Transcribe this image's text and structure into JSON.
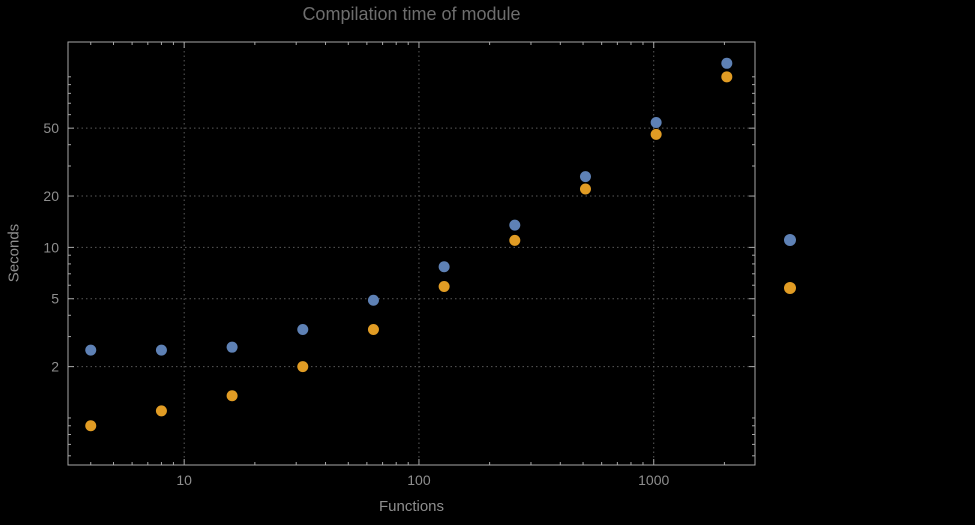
{
  "chart_data": {
    "type": "scatter",
    "title": "Compilation time of module",
    "xlabel": "Functions",
    "ylabel": "Seconds",
    "x_scale": "log",
    "y_scale": "log",
    "xlim": [
      3.2,
      2700
    ],
    "ylim": [
      0.53,
      160
    ],
    "grid": "dotted",
    "background": "#000000",
    "x_gridlines": [
      10,
      100,
      1000
    ],
    "x_tick_labels": [
      "10",
      "100",
      "1000"
    ],
    "y_gridlines": [
      2,
      5,
      10,
      20,
      50
    ],
    "y_tick_labels": [
      "2",
      "5",
      "10",
      "20",
      "50"
    ],
    "series": [
      {
        "name": "series-1-blue",
        "color": "#5e81b5",
        "x": [
          4,
          8,
          16,
          32,
          64,
          128,
          256,
          512,
          1024,
          2048
        ],
        "y": [
          2.5,
          2.5,
          2.6,
          3.3,
          4.9,
          7.7,
          13.5,
          26,
          54,
          120
        ]
      },
      {
        "name": "series-2-orange",
        "color": "#e19c24",
        "x": [
          4,
          8,
          16,
          32,
          64,
          128,
          256,
          512,
          1024,
          2048
        ],
        "y": [
          0.9,
          1.1,
          1.35,
          2.0,
          3.3,
          5.9,
          11,
          22,
          46,
          100
        ]
      }
    ],
    "legend": {
      "position": "right-outside",
      "labels_visible": false,
      "markers": [
        {
          "series": "series-1-blue",
          "color": "#5e81b5"
        },
        {
          "series": "series-2-orange",
          "color": "#e19c24"
        }
      ]
    }
  }
}
